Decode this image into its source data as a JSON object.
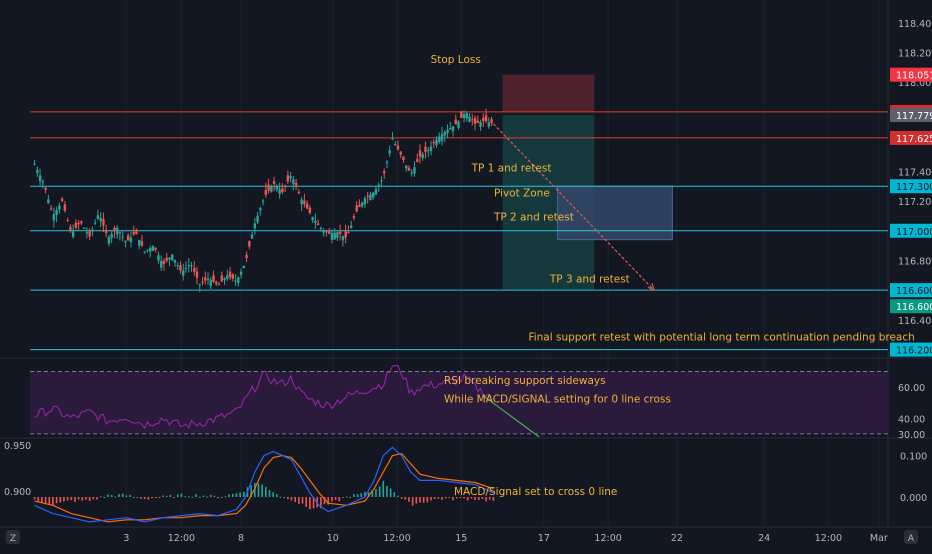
{
  "colors": {
    "background": "#131722",
    "grid": "#1e2230",
    "axis_text": "#b2b5be",
    "up": "#26a69a",
    "down": "#ef5350",
    "annotation": "#f0b23a",
    "level_line": "#26c6da",
    "red_line": "#e53935",
    "rsi_line": "#9c27b0",
    "rsi_band": "#2a1b3d",
    "macd_line": "#2962ff",
    "signal_line": "#ff6d00",
    "hist_up": "#26a69a",
    "hist_down": "#ef5350",
    "stop_zone": "#5a2630",
    "target_zone": "#153c3e",
    "pivot_box": "#34466a",
    "arrow": "#e05a5a",
    "rsi_arrow": "#4caf50"
  },
  "chart_data": [
    {
      "id": "price",
      "type": "candlestick",
      "y_ticks": [
        "118.400",
        "118.200",
        "118.000",
        "117.400",
        "117.200",
        "116.800",
        "116.400"
      ],
      "ylim": [
        116.15,
        118.52
      ],
      "levels": [
        {
          "value": 117.8,
          "color": "red",
          "label": "117.800"
        },
        {
          "value": 117.625,
          "color": "red",
          "label": "117.625"
        },
        {
          "value": 117.3,
          "color": "cyan",
          "label": "117.300"
        },
        {
          "value": 117.0,
          "color": "cyan",
          "label": "117.000"
        },
        {
          "value": 116.6,
          "color": "cyan",
          "label": "116.600"
        },
        {
          "value": 116.2,
          "color": "cyan",
          "label": "116.200"
        }
      ],
      "price_tags": [
        {
          "value": 118.051,
          "label": "118.051",
          "style": "red"
        },
        {
          "value": 117.779,
          "label": "117.779",
          "style": "gray"
        },
        {
          "value": 116.6,
          "label": "116.600",
          "style": "green",
          "offset": 16
        }
      ],
      "close_path": [
        [
          0,
          117.45
        ],
        [
          4,
          117.32
        ],
        [
          8,
          117.1
        ],
        [
          12,
          117.2
        ],
        [
          16,
          116.98
        ],
        [
          20,
          117.06
        ],
        [
          24,
          116.96
        ],
        [
          28,
          117.12
        ],
        [
          32,
          116.95
        ],
        [
          36,
          117.02
        ],
        [
          40,
          116.92
        ],
        [
          44,
          116.99
        ],
        [
          48,
          116.86
        ],
        [
          52,
          116.9
        ],
        [
          56,
          116.77
        ],
        [
          60,
          116.84
        ],
        [
          64,
          116.72
        ],
        [
          68,
          116.78
        ],
        [
          72,
          116.64
        ],
        [
          76,
          116.68
        ],
        [
          80,
          116.63
        ],
        [
          84,
          116.7
        ],
        [
          88,
          116.66
        ],
        [
          92,
          116.79
        ],
        [
          96,
          117.05
        ],
        [
          100,
          117.22
        ],
        [
          104,
          117.32
        ],
        [
          108,
          117.26
        ],
        [
          112,
          117.38
        ],
        [
          116,
          117.22
        ],
        [
          120,
          117.12
        ],
        [
          124,
          117.03
        ],
        [
          128,
          116.98
        ],
        [
          132,
          116.99
        ],
        [
          136,
          116.95
        ],
        [
          140,
          117.12
        ],
        [
          144,
          117.22
        ],
        [
          148,
          117.26
        ],
        [
          152,
          117.36
        ],
        [
          156,
          117.62
        ],
        [
          160,
          117.5
        ],
        [
          164,
          117.38
        ],
        [
          168,
          117.5
        ],
        [
          172,
          117.55
        ],
        [
          176,
          117.63
        ],
        [
          180,
          117.68
        ],
        [
          184,
          117.72
        ],
        [
          188,
          117.8
        ],
        [
          192,
          117.72
        ],
        [
          196,
          117.74
        ],
        [
          200,
          117.72
        ]
      ],
      "annotations": [
        {
          "text": "Stop Loss",
          "value": 118.13,
          "xfrac": 0.462
        },
        {
          "text": "TP 1 and retest",
          "value": 117.4,
          "xfrac": 0.506
        },
        {
          "text": "Pivot Zone",
          "value": 117.23,
          "xfrac": 0.53
        },
        {
          "text": "TP 2 and retest",
          "value": 117.07,
          "xfrac": 0.53
        },
        {
          "text": "TP 3 and retest",
          "value": 116.65,
          "xfrac": 0.59
        },
        {
          "text": "Final support retest with potential long term continuation pending breach",
          "value": 116.26,
          "xfrac": 0.567
        }
      ],
      "zones": {
        "stop": [
          117.8,
          118.051
        ],
        "target": [
          116.6,
          117.779
        ],
        "pivot": [
          116.94,
          117.3
        ]
      },
      "arrow": {
        "from": [
          200,
          117.72
        ],
        "to": [
          270,
          116.6
        ]
      }
    },
    {
      "id": "rsi",
      "type": "line",
      "y_ticks": [
        "60.00",
        "40.00",
        "30.00"
      ],
      "ylim": [
        28,
        78
      ],
      "band": [
        30,
        70
      ],
      "values_path": [
        [
          0,
          42
        ],
        [
          8,
          46
        ],
        [
          16,
          40
        ],
        [
          24,
          44
        ],
        [
          32,
          38
        ],
        [
          40,
          41
        ],
        [
          48,
          36
        ],
        [
          56,
          40
        ],
        [
          64,
          35
        ],
        [
          72,
          37
        ],
        [
          80,
          40
        ],
        [
          88,
          44
        ],
        [
          96,
          60
        ],
        [
          100,
          68
        ],
        [
          104,
          64
        ],
        [
          108,
          62
        ],
        [
          112,
          66
        ],
        [
          116,
          56
        ],
        [
          120,
          52
        ],
        [
          124,
          50
        ],
        [
          128,
          48
        ],
        [
          136,
          54
        ],
        [
          144,
          58
        ],
        [
          152,
          62
        ],
        [
          156,
          74
        ],
        [
          160,
          70
        ],
        [
          164,
          56
        ],
        [
          168,
          60
        ],
        [
          176,
          62
        ],
        [
          184,
          64
        ],
        [
          188,
          66
        ],
        [
          192,
          60
        ],
        [
          196,
          56
        ],
        [
          200,
          54
        ]
      ],
      "annotations": [
        {
          "text": "RSI breaking support sideways",
          "value": 62
        },
        {
          "text": "While MACD/SIGNAL setting for 0 line cross",
          "value": 50
        }
      ],
      "arrow": {
        "from": [
          196,
          54
        ],
        "to": [
          220,
          28
        ]
      }
    },
    {
      "id": "macd",
      "type": "line",
      "y_ticks": [
        "0.100",
        "0.000"
      ],
      "left_ticks": [
        "0.950",
        "0.900"
      ],
      "ylim": [
        -0.07,
        0.14
      ],
      "macd_path": [
        [
          0,
          -0.02
        ],
        [
          8,
          -0.04
        ],
        [
          16,
          -0.05
        ],
        [
          24,
          -0.06
        ],
        [
          32,
          -0.055
        ],
        [
          40,
          -0.05
        ],
        [
          48,
          -0.06
        ],
        [
          56,
          -0.05
        ],
        [
          64,
          -0.045
        ],
        [
          72,
          -0.04
        ],
        [
          80,
          -0.045
        ],
        [
          88,
          -0.03
        ],
        [
          92,
          0.0
        ],
        [
          96,
          0.06
        ],
        [
          100,
          0.1
        ],
        [
          104,
          0.11
        ],
        [
          108,
          0.1
        ],
        [
          112,
          0.09
        ],
        [
          116,
          0.05
        ],
        [
          120,
          0.01
        ],
        [
          124,
          -0.02
        ],
        [
          128,
          -0.035
        ],
        [
          136,
          -0.02
        ],
        [
          144,
          0.0
        ],
        [
          148,
          0.04
        ],
        [
          152,
          0.1
        ],
        [
          156,
          0.12
        ],
        [
          160,
          0.1
        ],
        [
          164,
          0.06
        ],
        [
          168,
          0.04
        ],
        [
          176,
          0.04
        ],
        [
          184,
          0.035
        ],
        [
          192,
          0.03
        ],
        [
          200,
          0.01
        ]
      ],
      "signal_path": [
        [
          0,
          -0.01
        ],
        [
          8,
          -0.02
        ],
        [
          16,
          -0.04
        ],
        [
          24,
          -0.05
        ],
        [
          32,
          -0.06
        ],
        [
          40,
          -0.055
        ],
        [
          48,
          -0.055
        ],
        [
          56,
          -0.05
        ],
        [
          64,
          -0.05
        ],
        [
          72,
          -0.045
        ],
        [
          80,
          -0.045
        ],
        [
          88,
          -0.04
        ],
        [
          92,
          -0.02
        ],
        [
          96,
          0.02
        ],
        [
          100,
          0.07
        ],
        [
          104,
          0.095
        ],
        [
          108,
          0.1
        ],
        [
          112,
          0.095
        ],
        [
          116,
          0.07
        ],
        [
          120,
          0.04
        ],
        [
          124,
          0.01
        ],
        [
          128,
          -0.015
        ],
        [
          136,
          -0.02
        ],
        [
          144,
          -0.01
        ],
        [
          148,
          0.02
        ],
        [
          152,
          0.06
        ],
        [
          156,
          0.1
        ],
        [
          160,
          0.105
        ],
        [
          164,
          0.08
        ],
        [
          168,
          0.055
        ],
        [
          176,
          0.045
        ],
        [
          184,
          0.04
        ],
        [
          192,
          0.035
        ],
        [
          200,
          0.02
        ]
      ],
      "annotation": {
        "text": "MACD/Signal set to cross 0 line",
        "value": 0.005
      }
    }
  ],
  "x_axis": {
    "ticks": [
      {
        "label": "3",
        "x": 40
      },
      {
        "label": "12:00",
        "x": 64
      },
      {
        "label": "8",
        "x": 90
      },
      {
        "label": "10",
        "x": 130
      },
      {
        "label": "12:00",
        "x": 158
      },
      {
        "label": "15",
        "x": 186
      },
      {
        "label": "17",
        "x": 222
      },
      {
        "label": "12:00",
        "x": 250
      },
      {
        "label": "22",
        "x": 280
      },
      {
        "label": "24",
        "x": 318
      },
      {
        "label": "12:00",
        "x": 346
      },
      {
        "label": "Mar",
        "x": 368
      }
    ],
    "xlim": [
      -2,
      372
    ]
  },
  "corner_left_label": "Z",
  "corner_right_label": "A"
}
